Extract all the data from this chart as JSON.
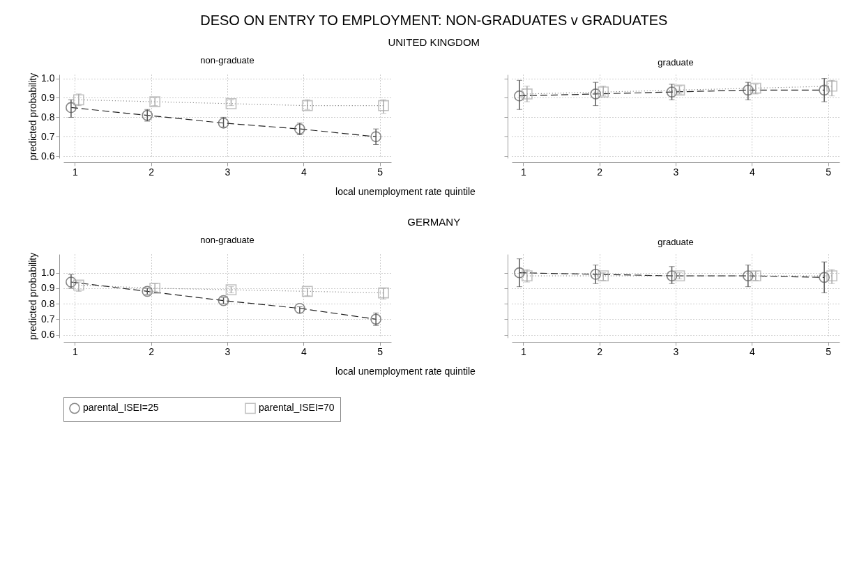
{
  "chart_data": [
    {
      "type": "line",
      "title": "non-graduate",
      "annotations": [
        "DESO ON ENTRY TO EMPLOYMENT: NON-GRADUATES v GRADUATES",
        "UNITED KINGDOM"
      ],
      "xlabel": "local unemployment rate quintile",
      "ylabel": "predicted probability",
      "xlim": [
        0.85,
        5.15
      ],
      "xticks": [
        1,
        2,
        3,
        4,
        5
      ],
      "ylim": [
        0.59,
        1.02
      ],
      "yticks": [
        0.6,
        0.7,
        0.8,
        0.9,
        {
          "value": 1.0,
          "label": "1.0"
        }
      ],
      "grid": true,
      "legend": "bottom",
      "series": [
        {
          "name": "parental_ISEI=25",
          "color": "#555555",
          "marker": "circle",
          "line_style": "dashed",
          "x": [
            0.95,
            1.95,
            2.95,
            3.95,
            4.95
          ],
          "values": [
            0.85,
            0.81,
            0.77,
            0.74,
            0.7
          ],
          "errors": [
            [
              0.8,
              0.89
            ],
            [
              0.78,
              0.84
            ],
            [
              0.75,
              0.8
            ],
            [
              0.71,
              0.77
            ],
            [
              0.66,
              0.74
            ]
          ]
        },
        {
          "name": "parental_ISEI=70",
          "color": "#a8a8a8",
          "marker": "square",
          "line_style": "dotted",
          "x": [
            1.05,
            2.05,
            3.05,
            4.05,
            5.05
          ],
          "values": [
            0.89,
            0.88,
            0.87,
            0.86,
            0.86
          ],
          "errors": [
            [
              0.86,
              0.92
            ],
            [
              0.86,
              0.9
            ],
            [
              0.86,
              0.89
            ],
            [
              0.84,
              0.89
            ],
            [
              0.82,
              0.89
            ]
          ]
        }
      ]
    },
    {
      "type": "line",
      "title": "graduate",
      "xlim": [
        0.85,
        5.15
      ],
      "xticks": [
        1,
        2,
        3,
        4,
        5
      ],
      "ylim": [
        0.59,
        1.02
      ],
      "yticks": [
        0.6,
        0.7,
        0.8,
        0.9,
        1.0
      ],
      "grid": true,
      "tick_labels": "x",
      "series": [
        {
          "color": "#555555",
          "marker": "circle",
          "line_style": "dashed",
          "x": [
            0.95,
            1.95,
            2.95,
            3.95,
            4.95
          ],
          "values": [
            0.91,
            0.92,
            0.93,
            0.94,
            0.94
          ],
          "errors": [
            [
              0.84,
              0.99
            ],
            [
              0.86,
              0.98
            ],
            [
              0.89,
              0.97
            ],
            [
              0.89,
              0.98
            ],
            [
              0.88,
              1.0
            ]
          ]
        },
        {
          "color": "#a8a8a8",
          "marker": "square",
          "line_style": "dotted",
          "x": [
            1.05,
            2.05,
            3.05,
            4.05,
            5.05
          ],
          "values": [
            0.92,
            0.93,
            0.94,
            0.95,
            0.96
          ],
          "errors": [
            [
              0.88,
              0.96
            ],
            [
              0.91,
              0.96
            ],
            [
              0.92,
              0.96
            ],
            [
              0.92,
              0.97
            ],
            [
              0.91,
              0.99
            ]
          ]
        }
      ]
    },
    {
      "type": "line",
      "title": "non-graduate",
      "annotations": [
        "GERMANY"
      ],
      "xlabel": "local unemployment rate quintile",
      "ylabel": "predicted probability",
      "xlim": [
        0.85,
        5.15
      ],
      "xticks": [
        1,
        2,
        3,
        4,
        5
      ],
      "ylim": [
        0.58,
        1.12
      ],
      "yticks": [
        0.6,
        0.7,
        0.8,
        0.9,
        {
          "value": 1.0,
          "label": "1.0"
        }
      ],
      "grid": true,
      "series": [
        {
          "color": "#555555",
          "marker": "circle",
          "line_style": "dashed",
          "x": [
            0.95,
            1.95,
            2.95,
            3.95,
            4.95
          ],
          "values": [
            0.94,
            0.88,
            0.82,
            0.77,
            0.7
          ],
          "errors": [
            [
              0.9,
              0.99
            ],
            [
              0.86,
              0.9
            ],
            [
              0.8,
              0.84
            ],
            [
              0.74,
              0.78
            ],
            [
              0.66,
              0.74
            ]
          ]
        },
        {
          "color": "#a8a8a8",
          "marker": "square",
          "line_style": "dotted",
          "x": [
            1.05,
            2.05,
            3.05,
            4.05,
            5.05
          ],
          "values": [
            0.92,
            0.9,
            0.89,
            0.88,
            0.87
          ],
          "errors": [
            [
              0.88,
              0.94
            ],
            [
              0.88,
              0.93
            ],
            [
              0.87,
              0.91
            ],
            [
              0.85,
              0.9
            ],
            [
              0.83,
              0.9
            ]
          ]
        }
      ]
    },
    {
      "type": "line",
      "title": "graduate",
      "xlim": [
        0.85,
        5.15
      ],
      "xticks": [
        1,
        2,
        3,
        4,
        5
      ],
      "ylim": [
        0.58,
        1.12
      ],
      "yticks": [
        0.6,
        0.7,
        0.8,
        0.9,
        1.0
      ],
      "grid": true,
      "tick_labels": "x",
      "series": [
        {
          "color": "#555555",
          "marker": "circle",
          "line_style": "dashed",
          "x": [
            0.95,
            1.95,
            2.95,
            3.95,
            4.95
          ],
          "values": [
            1.0,
            0.99,
            0.98,
            0.98,
            0.97
          ],
          "errors": [
            [
              0.91,
              1.09
            ],
            [
              0.93,
              1.05
            ],
            [
              0.93,
              1.04
            ],
            [
              0.91,
              1.05
            ],
            [
              0.87,
              1.07
            ]
          ]
        },
        {
          "color": "#a8a8a8",
          "marker": "square",
          "line_style": "dotted",
          "x": [
            1.05,
            2.05,
            3.05,
            4.05,
            5.05
          ],
          "values": [
            0.98,
            0.98,
            0.98,
            0.98,
            0.98
          ],
          "errors": [
            [
              0.94,
              1.02
            ],
            [
              0.95,
              1.0
            ],
            [
              0.96,
              1.0
            ],
            [
              0.95,
              1.01
            ],
            [
              0.93,
              1.02
            ]
          ]
        }
      ]
    }
  ]
}
